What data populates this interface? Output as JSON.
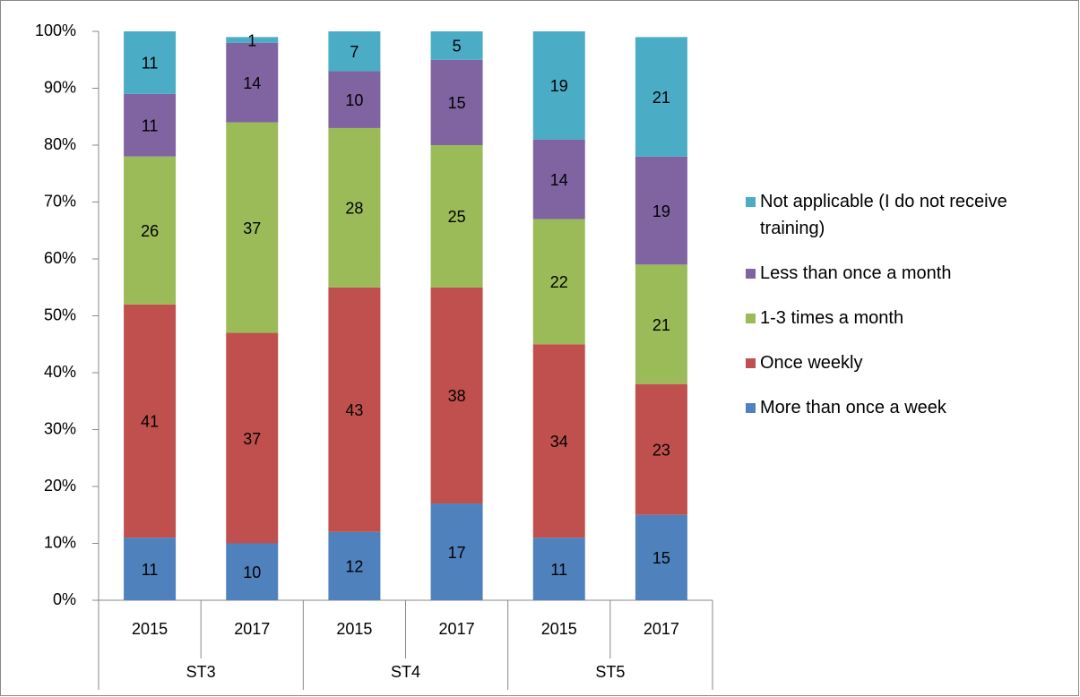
{
  "chart_data": {
    "type": "stacked_bar",
    "categories": [
      "2015",
      "2017",
      "2015",
      "2017",
      "2015",
      "2017"
    ],
    "groups": [
      "ST3",
      "ST4",
      "ST5"
    ],
    "series": [
      {
        "name": "More than once a week",
        "color": "#4f81bd",
        "values": [
          11,
          10,
          12,
          17,
          11,
          15
        ]
      },
      {
        "name": "Once weekly",
        "color": "#c0504d",
        "values": [
          41,
          37,
          43,
          38,
          34,
          23
        ]
      },
      {
        "name": "1-3 times a month",
        "color": "#9bbb59",
        "values": [
          26,
          37,
          28,
          25,
          22,
          21
        ]
      },
      {
        "name": "Less than once a month",
        "color": "#8064a2",
        "values": [
          11,
          14,
          10,
          15,
          14,
          19
        ]
      },
      {
        "name": "Not applicable (I do not receive training)",
        "color": "#4bacc6",
        "values": [
          11,
          1,
          7,
          5,
          19,
          21
        ]
      }
    ],
    "ylim": [
      0,
      100
    ],
    "yticks": [
      {
        "value": 0,
        "label": "0%"
      },
      {
        "value": 10,
        "label": "10%"
      },
      {
        "value": 20,
        "label": "20%"
      },
      {
        "value": 30,
        "label": "30%"
      },
      {
        "value": 40,
        "label": "40%"
      },
      {
        "value": 50,
        "label": "50%"
      },
      {
        "value": 60,
        "label": "60%"
      },
      {
        "value": 70,
        "label": "70%"
      },
      {
        "value": 80,
        "label": "80%"
      },
      {
        "value": 90,
        "label": "90%"
      },
      {
        "value": 100,
        "label": "100%"
      }
    ],
    "legend": "right"
  }
}
